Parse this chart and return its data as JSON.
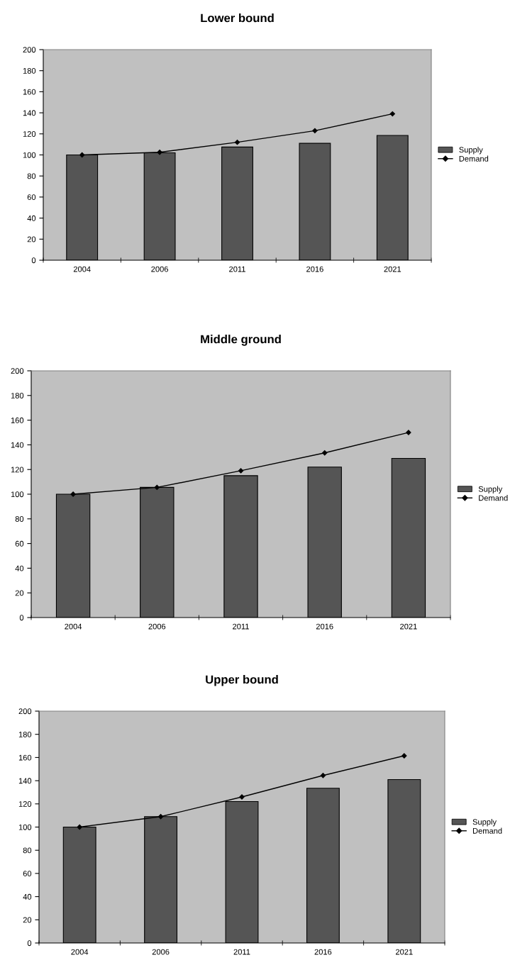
{
  "chart_data": [
    {
      "type": "bar",
      "title": "Lower bound",
      "categories": [
        "2004",
        "2006",
        "2011",
        "2016",
        "2021"
      ],
      "ylim": [
        0,
        200
      ],
      "yticks": [
        0,
        20,
        40,
        60,
        80,
        100,
        120,
        140,
        160,
        180,
        200
      ],
      "grid": false,
      "legend": "right",
      "series": [
        {
          "name": "Supply",
          "color": "#555555",
          "values": [
            100,
            102,
            107.5,
            111,
            118.5
          ]
        },
        {
          "name": "Demand",
          "type": "line",
          "color": "#000000",
          "marker": "diamond",
          "values": [
            100,
            102.5,
            112,
            123,
            139
          ]
        }
      ]
    },
    {
      "type": "bar",
      "title": "Middle ground",
      "categories": [
        "2004",
        "2006",
        "2011",
        "2016",
        "2021"
      ],
      "ylim": [
        0,
        200
      ],
      "yticks": [
        0,
        20,
        40,
        60,
        80,
        100,
        120,
        140,
        160,
        180,
        200
      ],
      "grid": false,
      "legend": "right",
      "series": [
        {
          "name": "Supply",
          "color": "#555555",
          "values": [
            100,
            105.5,
            115,
            122,
            129
          ]
        },
        {
          "name": "Demand",
          "type": "line",
          "color": "#000000",
          "marker": "diamond",
          "values": [
            100,
            105.5,
            119,
            133.5,
            150
          ]
        }
      ]
    },
    {
      "type": "bar",
      "title": "Upper bound",
      "categories": [
        "2004",
        "2006",
        "2011",
        "2016",
        "2021"
      ],
      "ylim": [
        0,
        200
      ],
      "yticks": [
        0,
        20,
        40,
        60,
        80,
        100,
        120,
        140,
        160,
        180,
        200
      ],
      "grid": false,
      "legend": "right",
      "series": [
        {
          "name": "Supply",
          "color": "#555555",
          "values": [
            100,
            109,
            122,
            133.5,
            141
          ]
        },
        {
          "name": "Demand",
          "type": "line",
          "color": "#000000",
          "marker": "diamond",
          "values": [
            100,
            109,
            126,
            144.5,
            161.5
          ]
        }
      ]
    }
  ]
}
